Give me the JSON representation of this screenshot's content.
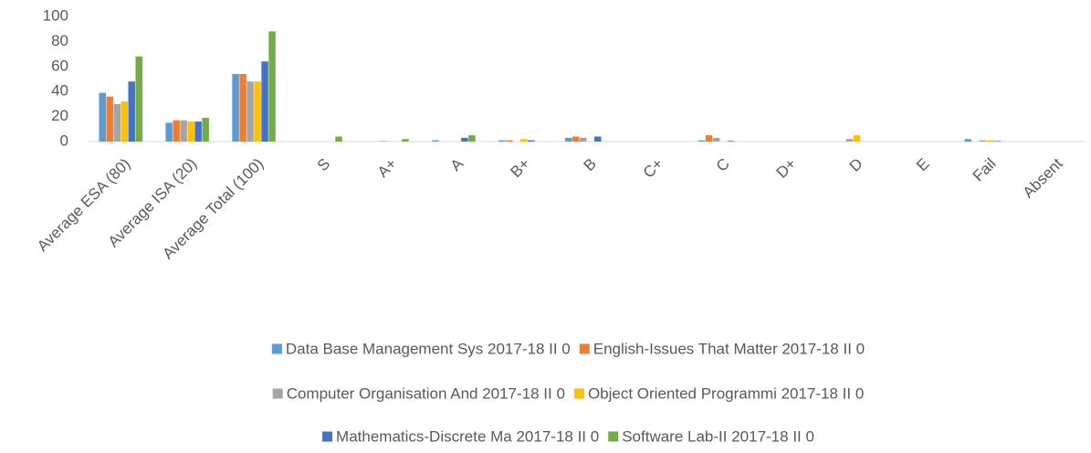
{
  "chart_data": {
    "type": "bar",
    "categories": [
      "Average ESA (80)",
      "Average ISA (20)",
      "Average Total (100)",
      "S",
      "A+",
      "A",
      "B+",
      "B",
      "C+",
      "C",
      "D+",
      "D",
      "E",
      "Fail",
      "Absent"
    ],
    "series": [
      {
        "name": "Data Base Management Sys 2017-18 II 0",
        "color": "#5b9bd5",
        "values": [
          39,
          15,
          54,
          0,
          0,
          1,
          1,
          3,
          0,
          1,
          0,
          0,
          0,
          2,
          0
        ]
      },
      {
        "name": "English-Issues That Matter 2017-18 II 0",
        "color": "#ed7d31",
        "values": [
          36,
          17,
          54,
          0,
          0,
          0,
          1,
          4,
          0,
          5,
          0,
          0,
          0,
          0,
          0
        ]
      },
      {
        "name": "Computer Organisation And 2017-18 II 0",
        "color": "#a5a5a5",
        "values": [
          30,
          17,
          48,
          0,
          0.5,
          0,
          0,
          3,
          0,
          3,
          0,
          2,
          0,
          1,
          0
        ]
      },
      {
        "name": "Object Oriented Programmi 2017-18 II 0",
        "color": "#ffc000",
        "values": [
          32,
          16,
          48,
          0,
          0,
          0,
          2,
          0,
          0,
          0,
          0,
          5,
          0,
          1,
          0
        ]
      },
      {
        "name": "Mathematics-Discrete Ma 2017-18 II 0",
        "color": "#4472c4",
        "values": [
          48,
          16,
          64,
          0,
          0,
          3,
          1,
          4,
          0,
          0.5,
          0,
          0,
          0,
          0.5,
          0
        ]
      },
      {
        "name": "Software Lab-II 2017-18 II 0",
        "color": "#70ad47",
        "values": [
          68,
          19,
          88,
          4,
          2,
          5,
          0,
          0,
          0,
          0,
          0,
          0,
          0,
          0,
          0
        ]
      }
    ],
    "ylim": [
      0,
      100
    ],
    "yticks": [
      0,
      20,
      40,
      60,
      80,
      100
    ],
    "grid": false
  }
}
